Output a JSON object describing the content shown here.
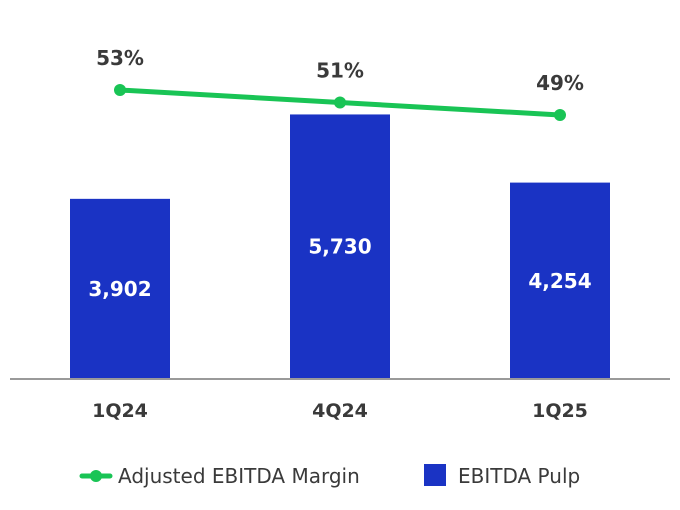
{
  "chart_data": {
    "type": "bar",
    "categories": [
      "1Q24",
      "4Q24",
      "1Q25"
    ],
    "series": [
      {
        "name": "EBITDA Pulp",
        "kind": "bar",
        "values": [
          3902,
          5730,
          4254
        ],
        "labels": [
          "3,902",
          "5,730",
          "4,254"
        ],
        "color": "#1a33c4"
      },
      {
        "name": "Adjusted EBITDA Margin",
        "kind": "line",
        "values": [
          53,
          51,
          49
        ],
        "labels": [
          "53%",
          "51%",
          "49%"
        ],
        "color": "#19c455"
      }
    ],
    "title": "",
    "xlabel": "",
    "ylabel": "",
    "legend_position": "bottom",
    "grid": false,
    "axis_color": "#9a9a9a"
  }
}
